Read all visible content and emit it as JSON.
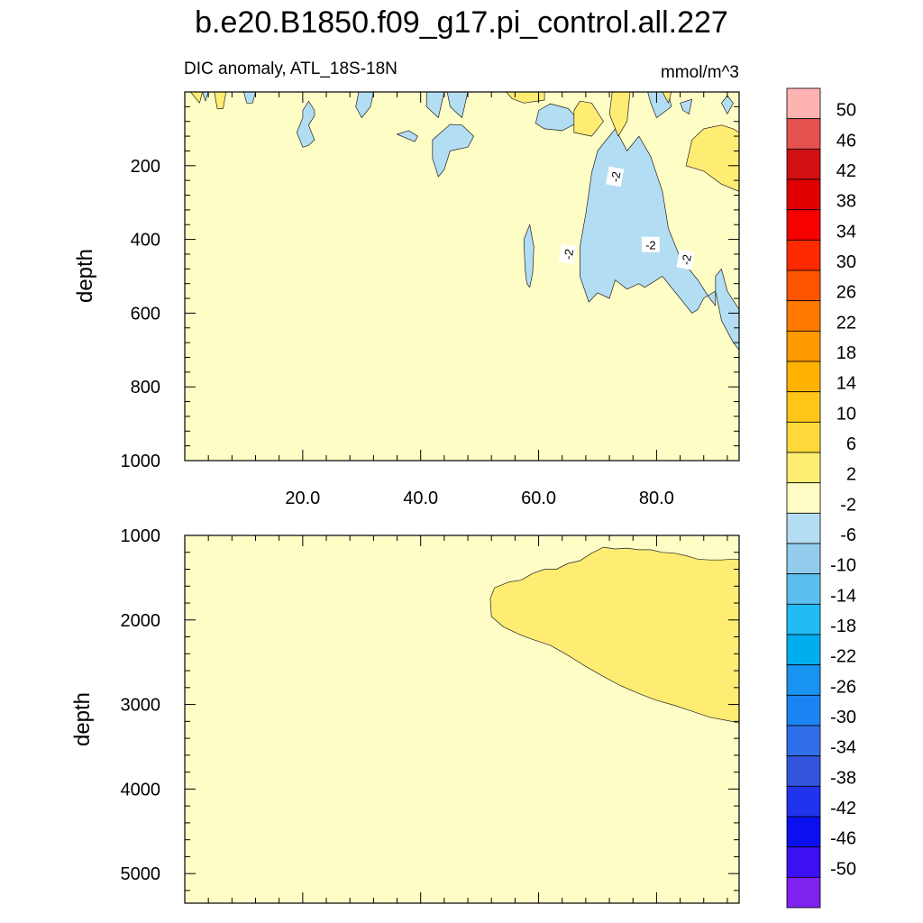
{
  "chart_data": {
    "type": "heatmap",
    "title": "b.e20.B1850.f09_g17.pi_control.all.227",
    "colorbar": {
      "levels": [
        "50",
        "46",
        "42",
        "38",
        "34",
        "30",
        "26",
        "22",
        "18",
        "14",
        "10",
        "6",
        "2",
        "-2",
        "-6",
        "-10",
        "-14",
        "-18",
        "-22",
        "-26",
        "-30",
        "-34",
        "-38",
        "-42",
        "-46",
        "-50"
      ],
      "colors": [
        "#FEB2B2",
        "#E5524F",
        "#D11111",
        "#E00000",
        "#F60000",
        "#FF2A00",
        "#FF5500",
        "#FF7A00",
        "#FF9900",
        "#FFB300",
        "#FFC61A",
        "#FFD93A",
        "#FFEC73",
        "#FFFDC6",
        "#B3DDF2",
        "#92CBEB",
        "#5BC0EE",
        "#22BBF5",
        "#00AEEE",
        "#1893F0",
        "#1C84F2",
        "#2F6EE8",
        "#3355DD",
        "#2233EE",
        "#0A11EE",
        "#3C10F0",
        "#7F22EE"
      ]
    },
    "panels": [
      {
        "subtitle_left": "DIC anomaly, ATL_18S-18N",
        "subtitle_right": "mmol/m^3",
        "ylabel": "depth",
        "xlim": [
          0,
          94
        ],
        "ylim": [
          0,
          1000
        ],
        "y_reversed": true,
        "xticks": [
          20,
          40,
          60,
          80
        ],
        "xtick_labels": [
          "20.0",
          "40.0",
          "60.0",
          "80.0"
        ],
        "yticks": [
          200,
          400,
          600,
          800,
          1000
        ],
        "ytick_labels": [
          "200",
          "400",
          "600",
          "800",
          "1000"
        ],
        "background_level": "-2 to 2",
        "contour_labels": [
          "-2",
          "-2",
          "-2",
          "-2"
        ],
        "regions": [
          {
            "level": "-6 to -2",
            "points": [
              [
                68.5,
                570
              ],
              [
                67,
                500
              ],
              [
                67,
                420
              ],
              [
                68,
                330
              ],
              [
                69,
                220
              ],
              [
                70,
                160
              ],
              [
                73,
                100
              ],
              [
                75,
                160
              ],
              [
                77,
                120
              ],
              [
                79,
                175
              ],
              [
                81,
                270
              ],
              [
                82,
                370
              ],
              [
                84,
                450
              ],
              [
                87,
                510
              ],
              [
                89,
                560
              ],
              [
                90,
                580
              ],
              [
                90,
                500
              ],
              [
                91,
                480
              ],
              [
                92,
                540
              ],
              [
                94,
                590
              ],
              [
                94,
                700
              ],
              [
                93,
                680
              ],
              [
                91,
                620
              ],
              [
                90,
                540
              ],
              [
                88,
                560
              ],
              [
                87,
                590
              ],
              [
                86,
                600
              ],
              [
                84,
                560
              ],
              [
                83,
                540
              ],
              [
                81,
                500
              ],
              [
                80,
                510
              ],
              [
                78,
                530
              ],
              [
                77,
                520
              ],
              [
                75,
                535
              ],
              [
                73,
                510
              ],
              [
                72,
                560
              ],
              [
                70,
                545
              ]
            ]
          },
          {
            "level": "-6 to -2",
            "points": [
              [
                57.7,
                480
              ],
              [
                57.5,
                400
              ],
              [
                58.5,
                360
              ],
              [
                59.2,
                420
              ],
              [
                59,
                490
              ],
              [
                58.5,
                530
              ],
              [
                58,
                520
              ]
            ]
          },
          {
            "level": "-6 to -2",
            "points": [
              [
                60,
                50
              ],
              [
                62,
                32
              ],
              [
                65,
                45
              ],
              [
                67,
                80
              ],
              [
                64,
                105
              ],
              [
                61,
                100
              ],
              [
                59.5,
                85
              ]
            ]
          },
          {
            "level": "-6 to -2",
            "points": [
              [
                42,
                130
              ],
              [
                45,
                88
              ],
              [
                47,
                90
              ],
              [
                49,
                120
              ],
              [
                48,
                150
              ],
              [
                45,
                160
              ],
              [
                44,
                210
              ],
              [
                43,
                230
              ],
              [
                42,
                180
              ]
            ]
          },
          {
            "level": "-6 to -2",
            "points": [
              [
                36,
                115
              ],
              [
                38,
                105
              ],
              [
                39.5,
                120
              ],
              [
                39,
                135
              ]
            ]
          },
          {
            "level": "-6 to -2",
            "points": [
              [
                20,
                50
              ],
              [
                21,
                25
              ],
              [
                22,
                50
              ],
              [
                22,
                65
              ],
              [
                21,
                90
              ],
              [
                22,
                130
              ],
              [
                21,
                145
              ],
              [
                20,
                150
              ],
              [
                19,
                110
              ],
              [
                20,
                70
              ]
            ]
          },
          {
            "level": "-6 to -2",
            "points": [
              [
                29.5,
                0
              ],
              [
                32,
                0
              ],
              [
                31.5,
                40
              ],
              [
                30,
                70
              ],
              [
                29,
                40
              ]
            ]
          },
          {
            "level": "-6 to -2",
            "points": [
              [
                41,
                0
              ],
              [
                44,
                0
              ],
              [
                43,
                70
              ],
              [
                41,
                40
              ]
            ]
          },
          {
            "level": "-6 to -2",
            "points": [
              [
                44.5,
                0
              ],
              [
                48,
                0
              ],
              [
                47,
                70
              ],
              [
                45,
                40
              ]
            ]
          },
          {
            "level": "-6 to -2",
            "points": [
              [
                10,
                0
              ],
              [
                12,
                0
              ],
              [
                11.5,
                30
              ],
              [
                10.5,
                30
              ]
            ]
          },
          {
            "level": "-6 to -2",
            "points": [
              [
                3,
                0
              ],
              [
                4,
                0
              ],
              [
                3.5,
                25
              ]
            ]
          },
          {
            "level": "-6 to -2",
            "points": [
              [
                78.5,
                0
              ],
              [
                82,
                0
              ],
              [
                82.5,
                40
              ],
              [
                80,
                70
              ],
              [
                79,
                30
              ]
            ]
          },
          {
            "level": "-6 to -2",
            "points": [
              [
                84,
                30
              ],
              [
                86,
                20
              ],
              [
                85.5,
                60
              ],
              [
                84.5,
                50
              ]
            ]
          },
          {
            "level": "-6 to -2",
            "points": [
              [
                91,
                30
              ],
              [
                92,
                10
              ],
              [
                93,
                30
              ],
              [
                92,
                60
              ]
            ]
          },
          {
            "level": "2 to 6",
            "points": [
              [
                85,
                200
              ],
              [
                86,
                130
              ],
              [
                88,
                100
              ],
              [
                91,
                90
              ],
              [
                93,
                100
              ],
              [
                94,
                110
              ],
              [
                94,
                270
              ],
              [
                91,
                250
              ],
              [
                88,
                215
              ]
            ]
          },
          {
            "level": "2 to 6",
            "points": [
              [
                66,
                50
              ],
              [
                67,
                25
              ],
              [
                69,
                30
              ],
              [
                71,
                80
              ],
              [
                69,
                120
              ],
              [
                66,
                110
              ]
            ]
          },
          {
            "level": "2 to 6",
            "points": [
              [
                54.5,
                0
              ],
              [
                61,
                0
              ],
              [
                61,
                22
              ],
              [
                57.5,
                30
              ],
              [
                55.5,
                18
              ]
            ]
          },
          {
            "level": "2 to 6",
            "points": [
              [
                72.5,
                0
              ],
              [
                75.5,
                0
              ],
              [
                75,
                80
              ],
              [
                73.5,
                120
              ],
              [
                72,
                60
              ]
            ]
          },
          {
            "level": "2 to 6",
            "points": [
              [
                81,
                0
              ],
              [
                82.5,
                0
              ],
              [
                82,
                30
              ]
            ]
          },
          {
            "level": "2 to 6",
            "points": [
              [
                1,
                0
              ],
              [
                3,
                0
              ],
              [
                2.5,
                30
              ]
            ]
          },
          {
            "level": "2 to 6",
            "points": [
              [
                5,
                0
              ],
              [
                7,
                0
              ],
              [
                6.5,
                45
              ],
              [
                5.5,
                45
              ]
            ]
          }
        ]
      },
      {
        "ylabel": "depth",
        "xlim": [
          0,
          94
        ],
        "ylim": [
          1000,
          5350
        ],
        "y_reversed": true,
        "yticks": [
          1000,
          2000,
          3000,
          4000,
          5000
        ],
        "ytick_labels": [
          "1000",
          "2000",
          "3000",
          "4000",
          "5000"
        ],
        "background_level": "-2 to 2",
        "regions": [
          {
            "level": "2 to 6",
            "points": [
              [
                52,
                1960
              ],
              [
                51.8,
                1750
              ],
              [
                52.5,
                1620
              ],
              [
                55,
                1550
              ],
              [
                57,
                1530
              ],
              [
                59,
                1450
              ],
              [
                61,
                1400
              ],
              [
                63,
                1400
              ],
              [
                65,
                1330
              ],
              [
                67,
                1300
              ],
              [
                69,
                1210
              ],
              [
                71,
                1140
              ],
              [
                73,
                1160
              ],
              [
                75,
                1150
              ],
              [
                77,
                1170
              ],
              [
                79,
                1170
              ],
              [
                81,
                1200
              ],
              [
                83,
                1210
              ],
              [
                85,
                1240
              ],
              [
                87,
                1280
              ],
              [
                89,
                1290
              ],
              [
                91,
                1290
              ],
              [
                93,
                1280
              ],
              [
                94,
                1280
              ],
              [
                94,
                3220
              ],
              [
                92,
                3190
              ],
              [
                89,
                3150
              ],
              [
                86,
                3080
              ],
              [
                83,
                3010
              ],
              [
                80,
                2950
              ],
              [
                77,
                2870
              ],
              [
                74,
                2780
              ],
              [
                71,
                2670
              ],
              [
                68,
                2550
              ],
              [
                65,
                2420
              ],
              [
                62,
                2300
              ],
              [
                59,
                2230
              ],
              [
                57,
                2180
              ],
              [
                54,
                2080
              ]
            ]
          }
        ]
      }
    ]
  }
}
